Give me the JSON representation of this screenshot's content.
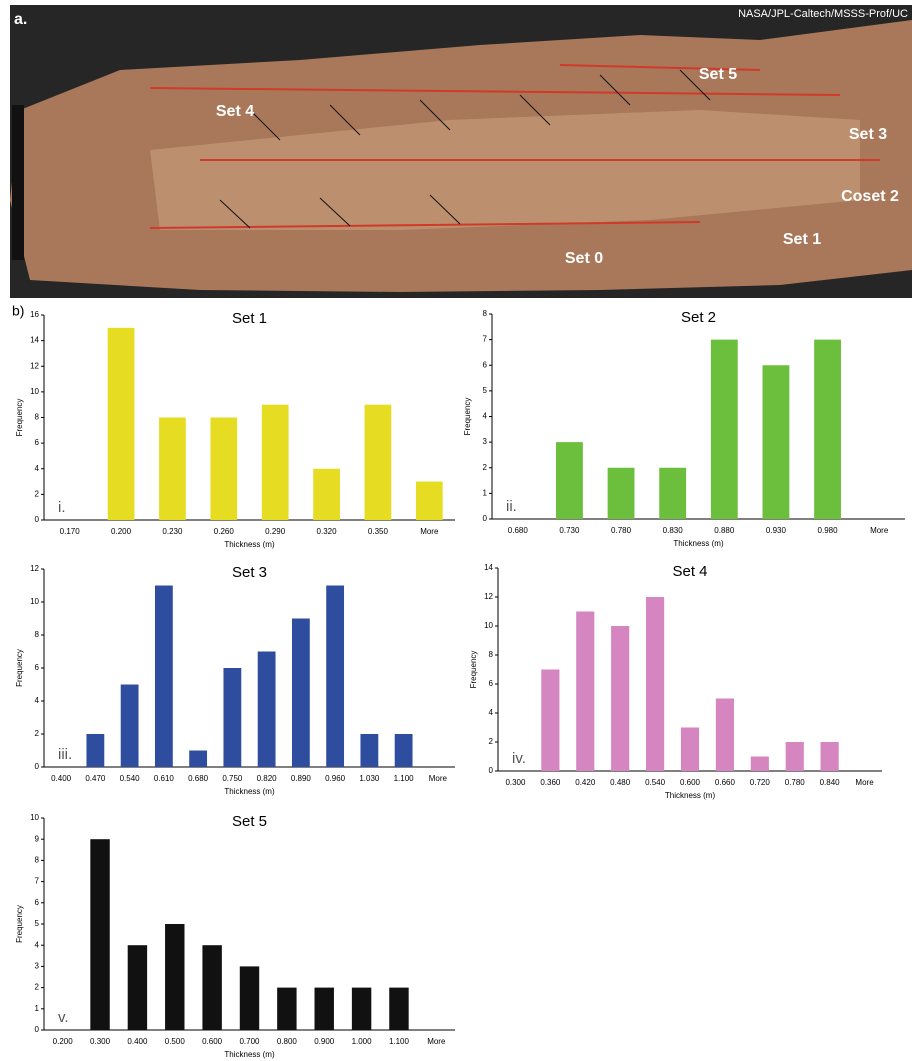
{
  "photo": {
    "panel_label": "a.",
    "credit": "NASA/JPL-Caltech/MSSS-Prof/UC",
    "labels": [
      "Set 5",
      "Set 4",
      "Set 3",
      "Coset 2",
      "Set 1",
      "Set 0"
    ]
  },
  "panel_label_b": "b)",
  "chart_data": [
    {
      "type": "bar",
      "title": "Set 1",
      "numeral": "i.",
      "xlabel": "Thickness (m)",
      "ylabel": "Frequency",
      "color": "#e6dc22",
      "categories": [
        "0.170",
        "0.200",
        "0.230",
        "0.260",
        "0.290",
        "0.320",
        "0.350",
        "More"
      ],
      "values": [
        0,
        15,
        8,
        8,
        9,
        4,
        9,
        3
      ],
      "ylim": [
        0,
        16
      ],
      "yticks": [
        0,
        2,
        4,
        6,
        8,
        10,
        12,
        14,
        16
      ]
    },
    {
      "type": "bar",
      "title": "Set 2",
      "numeral": "ii.",
      "xlabel": "Thickness (m)",
      "ylabel": "Frequency",
      "color": "#6cbf3c",
      "categories": [
        "0.680",
        "0.730",
        "0.780",
        "0.830",
        "0.880",
        "0.930",
        "0.980",
        "More"
      ],
      "values": [
        0,
        3,
        2,
        2,
        7,
        6,
        7,
        0
      ],
      "ylim": [
        0,
        8
      ],
      "yticks": [
        0,
        1,
        2,
        3,
        4,
        5,
        6,
        7,
        8
      ]
    },
    {
      "type": "bar",
      "title": "Set 3",
      "numeral": "iii.",
      "xlabel": "Thickness (m)",
      "ylabel": "Frequency",
      "color": "#2e4d9e",
      "categories": [
        "0.400",
        "0.470",
        "0.540",
        "0.610",
        "0.680",
        "0.750",
        "0.820",
        "0.890",
        "0.960",
        "1.030",
        "1.100",
        "More"
      ],
      "values": [
        0,
        2,
        5,
        11,
        1,
        6,
        7,
        9,
        11,
        2,
        2,
        0
      ],
      "ylim": [
        0,
        12
      ],
      "yticks": [
        0,
        2,
        4,
        6,
        8,
        10,
        12
      ]
    },
    {
      "type": "bar",
      "title": "Set 4",
      "numeral": "iv.",
      "xlabel": "Thickness (m)",
      "ylabel": "Frequency",
      "color": "#d585c0",
      "categories": [
        "0.300",
        "0.360",
        "0.420",
        "0.480",
        "0.540",
        "0.600",
        "0.660",
        "0.720",
        "0.780",
        "0.840",
        "More"
      ],
      "values": [
        0,
        7,
        11,
        10,
        12,
        3,
        5,
        1,
        2,
        2,
        0
      ],
      "ylim": [
        0,
        14
      ],
      "yticks": [
        0,
        2,
        4,
        6,
        8,
        10,
        12,
        14
      ]
    },
    {
      "type": "bar",
      "title": "Set 5",
      "numeral": "v.",
      "xlabel": "Thickness (m)",
      "ylabel": "Frequency",
      "color": "#111111",
      "categories": [
        "0.200",
        "0.300",
        "0.400",
        "0.500",
        "0.600",
        "0.700",
        "0.800",
        "0.900",
        "1.000",
        "1.100",
        "More"
      ],
      "values": [
        0,
        9,
        4,
        5,
        4,
        3,
        2,
        2,
        2,
        2,
        0
      ],
      "ylim": [
        0,
        10
      ],
      "yticks": [
        0,
        1,
        2,
        3,
        4,
        5,
        6,
        7,
        8,
        9,
        10
      ]
    }
  ]
}
